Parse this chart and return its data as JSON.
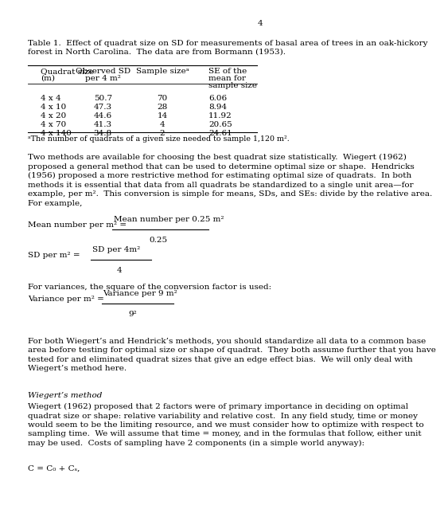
{
  "page_number": "4",
  "bg_color": "#ffffff",
  "text_color": "#000000",
  "font_family": "DejaVu Serif",
  "table_title": "Table 1.  Effect of quadrat size on SD for measurements of basal area of trees in an oak-hickory\nforest in North Carolina.  The data are from Bormann (1953).",
  "table_header": [
    "Quadrat size\n(m)",
    "Observed SD\nper 4 m²",
    "Sample sizeᵃ",
    "SE of the\nmean for\nsample size"
  ],
  "table_rows": [
    [
      "4 x 4",
      "50.7",
      "70",
      "6.06"
    ],
    [
      "4 x 10",
      "47.3",
      "28",
      "8.94"
    ],
    [
      "4 x 20",
      "44.6",
      "14",
      "11.92"
    ],
    [
      "4 x 70",
      "41.3",
      "4",
      "20.65"
    ],
    [
      "4 x 140",
      "34.8",
      "2",
      "24.61"
    ]
  ],
  "table_footnote": "ᵃThe number of quadrats of a given size needed to sample 1,120 m².",
  "para1": "Two methods are available for choosing the best quadrat size statistically.  Wiegert (1962)\nproposed a general method that can be used to determine optimal size or shape.  Hendricks\n(1956) proposed a more restrictive method for estimating optimal size of quadrats.  In both\nmethods it is essential that data from all quadrats be standardized to a single unit area—for\nexample, per m².  This conversion is simple for means, SDs, and SEs: divide by the relative area.\nFor example,",
  "formula1_left": "Mean number per m² =",
  "formula1_num": "Mean number per 0.25 m²",
  "formula1_den": "0.25",
  "formula2_left": "SD per m² =",
  "formula2_num": "SD per 4m²",
  "formula2_den": "4",
  "para2": "For variances, the square of the conversion factor is used:",
  "formula3_left": "Variance per m² =",
  "formula3_num": "Variance per 9 m²",
  "formula3_den": "9²",
  "para3": "For both Wiegert’s and Hendrick’s methods, you should standardize all data to a common base\narea before testing for optimal size or shape of quadrat.  They both assume further that you have\ntested for and eliminated quadrat sizes that give an edge effect bias.  We will only deal with\nWiegert’s method here.",
  "subhead": "Wiegert’s method",
  "para4": "Wiegert (1962) proposed that 2 factors were of primary importance in deciding on optimal\nquadrat size or shape: relative variability and relative cost.  In any field study, time or money\nwould seem to be the limiting resource, and we must consider how to optimize with respect to\nsampling time.  We will assume that time = money, and in the formulas that follow, either unit\nmay be used.  Costs of sampling have 2 components (in a simple world anyway):",
  "formula4": "C = C₀ + Cₛ,"
}
